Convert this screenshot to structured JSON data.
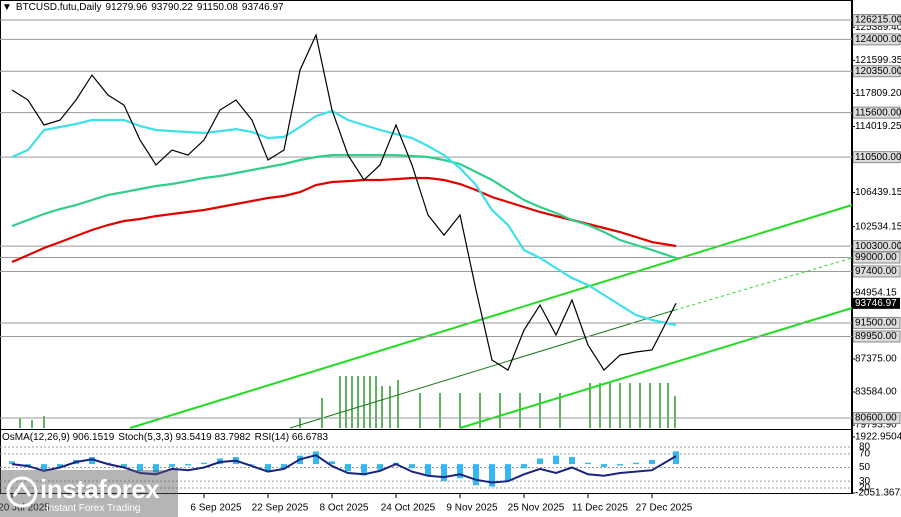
{
  "chart_data": [
    {
      "type": "line",
      "title": "BTCUSD.futu,Daily",
      "ohlc": [
        91279.96,
        93790.22,
        91150.08,
        93746.97
      ],
      "x": [
        "2025-07-20",
        "2025-07-24",
        "2025-07-28",
        "2025-08-01",
        "2025-08-05",
        "2025-08-09",
        "2025-08-13",
        "2025-08-17",
        "2025-08-21",
        "2025-08-25",
        "2025-08-29",
        "2025-09-02",
        "2025-09-06",
        "2025-09-10",
        "2025-09-14",
        "2025-09-18",
        "2025-09-22",
        "2025-09-26",
        "2025-09-30",
        "2025-10-04",
        "2025-10-08",
        "2025-10-12",
        "2025-10-16",
        "2025-10-20",
        "2025-10-24",
        "2025-10-28",
        "2025-11-01",
        "2025-11-05",
        "2025-11-09",
        "2025-11-13",
        "2025-11-17",
        "2025-11-21",
        "2025-11-25",
        "2025-11-29",
        "2025-12-03",
        "2025-12-07",
        "2025-12-11",
        "2025-12-15",
        "2025-12-19",
        "2025-12-23",
        "2025-12-27",
        "2026-01-02"
      ],
      "series": [
        {
          "color": "#000000",
          "values": [
            118200,
            117050,
            114180,
            114750,
            117050,
            119900,
            117620,
            116470,
            112460,
            109600,
            111320,
            110740,
            112460,
            115900,
            117050,
            114750,
            110170,
            111320,
            120480,
            124500,
            115900,
            110740,
            107880,
            109600,
            114180,
            109600,
            103870,
            101570,
            103870,
            95270,
            87250,
            86100,
            90690,
            93560,
            90120,
            94130,
            88970,
            86100,
            87820,
            88170,
            88400,
            93746.97
          ]
        },
        {
          "color": "#3fe0ea",
          "values": [
            110520,
            111320,
            113610,
            113950,
            114300,
            114760,
            114760,
            114760,
            114070,
            113610,
            113490,
            113380,
            113270,
            113490,
            113720,
            113380,
            112690,
            112810,
            113950,
            115210,
            115790,
            114760,
            114180,
            113610,
            113150,
            112690,
            111780,
            110740,
            109250,
            107310,
            104440,
            102720,
            99860,
            98940,
            97790,
            96650,
            95850,
            94700,
            93550,
            92410,
            91840,
            91260
          ]
        },
        {
          "color": "#2fcf8a",
          "values": [
            102610,
            103300,
            103980,
            104560,
            105010,
            105590,
            106160,
            106500,
            106850,
            107190,
            107420,
            107760,
            108110,
            108340,
            108680,
            109030,
            109370,
            109710,
            110170,
            110520,
            110740,
            110740,
            110740,
            110740,
            110740,
            110630,
            110520,
            110170,
            109710,
            108800,
            107880,
            106730,
            105590,
            104790,
            104100,
            103300,
            102720,
            101920,
            101000,
            100430,
            99860,
            98940
          ]
        },
        {
          "color": "#e00000",
          "values": [
            98480,
            99280,
            100090,
            100770,
            101460,
            102150,
            102720,
            103180,
            103410,
            103750,
            103980,
            104210,
            104440,
            104790,
            105130,
            105470,
            105820,
            106050,
            106500,
            107310,
            107650,
            107760,
            107880,
            107880,
            107990,
            108110,
            108110,
            107880,
            107420,
            106730,
            105930,
            105360,
            104790,
            104210,
            103750,
            103300,
            102840,
            102380,
            101920,
            101350,
            100770,
            100320
          ]
        }
      ],
      "xlim": [
        "2025-07-17",
        "2026-02-15"
      ],
      "xticks": [
        {
          "value": "2025-07-20",
          "label": "20 Jul 2025"
        },
        {
          "value": "2025-09-06",
          "label": "6 Sep 2025"
        },
        {
          "value": "2025-09-22",
          "label": "22 Sep 2025"
        },
        {
          "value": "2025-10-08",
          "label": "8 Oct 2025"
        },
        {
          "value": "2025-10-24",
          "label": "24 Oct 2025"
        },
        {
          "value": "2025-11-09",
          "label": "9 Nov 2025"
        },
        {
          "value": "2025-11-25",
          "label": "25 Nov 2025"
        },
        {
          "value": "2025-12-11",
          "label": "11 Dec 2025"
        },
        {
          "value": "2025-12-27",
          "label": "27 Dec 2025"
        }
      ],
      "ylim": [
        79460,
        128510
      ],
      "yticks": [
        {
          "value": 125389.4,
          "label": "125389.40"
        },
        {
          "value": 121599.35,
          "label": "121599.35"
        },
        {
          "value": 117809.2,
          "label": "117809.20"
        },
        {
          "value": 114019.25,
          "label": "114019.25"
        },
        {
          "value": 106439.15,
          "label": "106439.15"
        },
        {
          "value": 102534.15,
          "label": "102534.15"
        },
        {
          "value": 94954.15,
          "label": "94954.15"
        },
        {
          "value": 87375,
          "label": "87375.00"
        },
        {
          "value": 83584,
          "label": "83584.00"
        },
        {
          "value": 79793.9,
          "label": "79793.90"
        }
      ],
      "levels": [
        {
          "value": 126215,
          "label": "126215.00"
        },
        {
          "value": 124000,
          "label": "124000.00"
        },
        {
          "value": 120350,
          "label": "120350.00"
        },
        {
          "value": 115600,
          "label": "115600.00"
        },
        {
          "value": 110500,
          "label": "110500.00"
        },
        {
          "value": 100300,
          "label": "100300.00"
        },
        {
          "value": 99000,
          "label": "99000.00"
        },
        {
          "value": 97400,
          "label": "97400.00"
        },
        {
          "value": 91500,
          "label": "91500.00"
        },
        {
          "value": 89950,
          "label": "89950.00"
        },
        {
          "value": 80600,
          "label": "80600.00"
        }
      ]
    },
    {
      "type": "oscillator",
      "header": [
        "OsMA(12,26,9) 906.1519",
        "Stoch(5,3,3) 93.5419 83.7982",
        "RSI(14) 66.6783"
      ],
      "series": [
        {
          "type": "bar",
          "color": "#35b8f0",
          "values": [
            200,
            -100,
            -400,
            -200,
            300,
            500,
            100,
            -200,
            -500,
            -600,
            -200,
            -100,
            100,
            400,
            500,
            0,
            -500,
            -300,
            600,
            900,
            200,
            -500,
            -800,
            -400,
            100,
            -300,
            -800,
            -1200,
            -1000,
            -1500,
            -1600,
            -1200,
            -300,
            400,
            600,
            500,
            100,
            -200,
            -100,
            100,
            300,
            906.1519
          ]
        },
        {
          "type": "line",
          "axis": "y2",
          "color": "#1a237e",
          "values": [
            55,
            52,
            45,
            50,
            58,
            62,
            55,
            50,
            42,
            40,
            48,
            46,
            50,
            58,
            60,
            52,
            44,
            48,
            62,
            68,
            52,
            42,
            40,
            45,
            55,
            44,
            38,
            36,
            40,
            32,
            28,
            30,
            40,
            48,
            42,
            50,
            40,
            38,
            42,
            44,
            46,
            66.6783
          ]
        }
      ],
      "ylim": [
        -2122,
        2278
      ],
      "yticks": [
        {
          "value": 1922.9504,
          "label": "1922.9504"
        },
        {
          "value": -2051.3672,
          "label": "-2051.3672"
        }
      ],
      "y2lim": [
        11.2,
        102
      ],
      "y2ticks": [
        80,
        70,
        50,
        30,
        20
      ]
    }
  ],
  "logo": {
    "name": "instaforex",
    "tagline": "Instant Forex Trading"
  }
}
